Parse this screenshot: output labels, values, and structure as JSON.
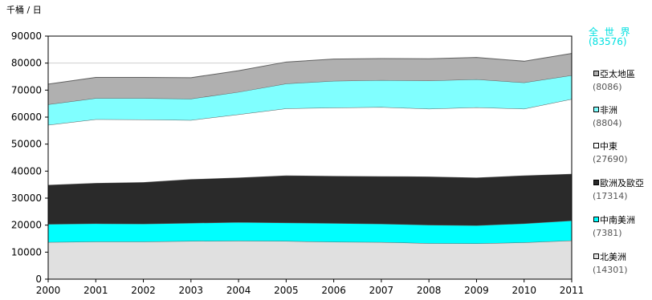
{
  "unit_label": "千桶 / 日",
  "world": {
    "name": "全 世 界",
    "total": "(83576)"
  },
  "colors": {
    "accent_text": "#00e0e0"
  },
  "legend": [
    {
      "name": "亞太地區",
      "value": "(8086)",
      "color": "#b0b0b0"
    },
    {
      "name": "非洲",
      "value": "(8804)",
      "color": "#80ffff"
    },
    {
      "name": "中東",
      "value": "(27690)",
      "color": "#ffffff"
    },
    {
      "name": "歐洲及歐亞",
      "value": "(17314)",
      "color": "#2a2a2a"
    },
    {
      "name": "中南美洲",
      "value": "(7381)",
      "color": "#00ffff"
    },
    {
      "name": "北美洲",
      "value": "(14301)",
      "color": "#e0e0e0"
    }
  ],
  "chart_data": {
    "type": "area",
    "stacked": true,
    "x": [
      2000,
      2001,
      2002,
      2003,
      2004,
      2005,
      2006,
      2007,
      2008,
      2009,
      2010,
      2011
    ],
    "ylim": [
      0,
      90000
    ],
    "yticks": [
      0,
      10000,
      20000,
      30000,
      40000,
      50000,
      60000,
      70000,
      80000,
      90000
    ],
    "series": [
      {
        "name": "北美洲",
        "color": "#e0e0e0",
        "values": [
          13700,
          13900,
          13900,
          14100,
          14200,
          14100,
          13800,
          13700,
          13300,
          13200,
          13600,
          14301
        ]
      },
      {
        "name": "中南美洲",
        "color": "#00ffff",
        "values": [
          6700,
          6700,
          6600,
          6700,
          6900,
          6800,
          6900,
          6800,
          6800,
          6700,
          7000,
          7381
        ]
      },
      {
        "name": "歐洲及歐亞",
        "color": "#2a2a2a",
        "values": [
          14500,
          15000,
          15400,
          16200,
          16500,
          17500,
          17500,
          17600,
          17900,
          17700,
          17800,
          17314
        ]
      },
      {
        "name": "中東",
        "color": "#ffffff",
        "values": [
          22200,
          23600,
          23200,
          21900,
          23400,
          24800,
          25300,
          25600,
          25100,
          26000,
          24700,
          27690
        ]
      },
      {
        "name": "非洲",
        "color": "#80ffff",
        "values": [
          7600,
          7800,
          7900,
          7900,
          8300,
          9200,
          9900,
          10000,
          10400,
          10400,
          9700,
          8804
        ]
      },
      {
        "name": "亞太地區",
        "color": "#b0b0b0",
        "values": [
          7500,
          7700,
          7700,
          7800,
          7900,
          8000,
          8100,
          8000,
          8100,
          8100,
          7900,
          8086
        ]
      }
    ]
  }
}
